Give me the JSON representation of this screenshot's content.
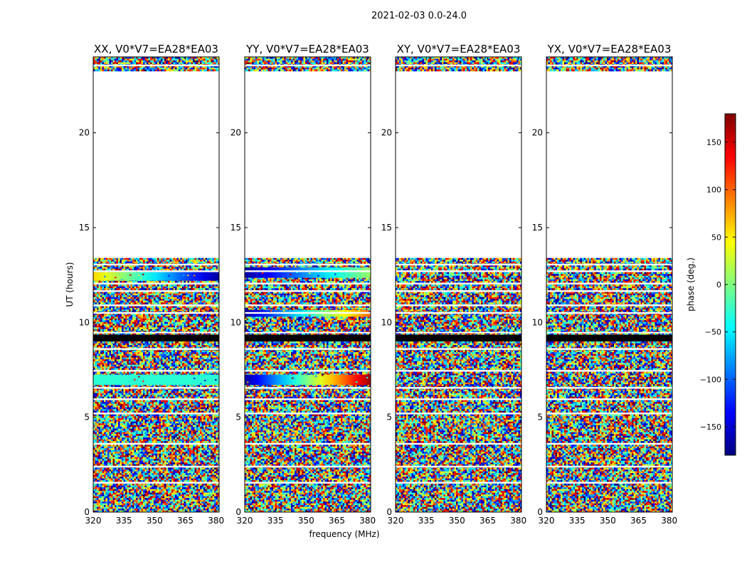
{
  "figure": {
    "suptitle": "2021-02-03 0.0-24.0",
    "xlabel": "frequency (MHz)",
    "ylabel": "UT (hours)"
  },
  "colorbar": {
    "label": "phase (deg.)",
    "range": [
      -180,
      180
    ],
    "ticks": [
      -150,
      -100,
      -50,
      0,
      50,
      100,
      150
    ],
    "tick_labels": [
      "−150",
      "−100",
      "−50",
      "0",
      "50",
      "100",
      "150"
    ],
    "colormap": "jet",
    "colors": [
      "#00007f",
      "#0000ff",
      "#007fff",
      "#00ffff",
      "#7fff7f",
      "#ffff00",
      "#ff7f00",
      "#ff0000",
      "#7f0000"
    ]
  },
  "chart_data": [
    {
      "type": "heatmap",
      "title": "XX, V0*V7=EA28*EA03",
      "x_range": [
        320,
        381.5
      ],
      "y_range": [
        0,
        24
      ],
      "x_ticks": [
        320,
        335,
        350,
        365,
        380
      ],
      "y_ticks": [
        0,
        5,
        10,
        15,
        20
      ],
      "data_coverage_hours": [
        [
          0,
          13.4
        ],
        [
          23.3,
          24
        ]
      ],
      "coherent_bands": [
        {
          "y": [
            12.2,
            12.65
          ],
          "phase_start": 60,
          "phase_end": -170
        },
        {
          "y": [
            6.7,
            7.25
          ],
          "phase_start": -30,
          "phase_end": -30
        }
      ]
    },
    {
      "type": "heatmap",
      "title": "YY, V0*V7=EA28*EA03",
      "x_range": [
        320,
        381.5
      ],
      "y_range": [
        0,
        24
      ],
      "x_ticks": [
        320,
        335,
        350,
        365,
        380
      ],
      "y_ticks": [
        0,
        5,
        10,
        15,
        20
      ],
      "data_coverage_hours": [
        [
          0,
          13.4
        ],
        [
          23.3,
          24
        ]
      ],
      "coherent_bands": [
        {
          "y": [
            12.35,
            12.9
          ],
          "phase_start": -170,
          "phase_end": 10
        },
        {
          "y": [
            10.3,
            10.65
          ],
          "phase_start": -170,
          "phase_end": 100
        },
        {
          "y": [
            6.7,
            7.25
          ],
          "phase_start": -170,
          "phase_end": 170
        }
      ]
    },
    {
      "type": "heatmap",
      "title": "XY, V0*V7=EA28*EA03",
      "x_range": [
        320,
        381.5
      ],
      "y_range": [
        0,
        24
      ],
      "x_ticks": [
        320,
        335,
        350,
        365,
        380
      ],
      "y_ticks": [
        0,
        5,
        10,
        15,
        20
      ],
      "data_coverage_hours": [
        [
          0,
          13.4
        ],
        [
          23.3,
          24
        ]
      ],
      "coherent_bands": []
    },
    {
      "type": "heatmap",
      "title": "YX, V0*V7=EA28*EA03",
      "x_range": [
        320,
        381.5
      ],
      "y_range": [
        0,
        24
      ],
      "x_ticks": [
        320,
        335,
        350,
        365,
        380
      ],
      "y_ticks": [
        0,
        5,
        10,
        15,
        20
      ],
      "data_coverage_hours": [
        [
          0,
          13.4
        ],
        [
          23.3,
          24
        ]
      ],
      "coherent_bands": []
    }
  ],
  "shared_flags": {
    "white_gaps_hours": [
      2.4,
      1.55,
      3.6,
      5.2,
      5.95,
      6.55,
      7.45,
      8.6,
      10.5,
      10.9,
      11.65,
      12.05,
      12.7,
      13.05,
      23.55
    ],
    "black_bands_hours": [
      [
        9.0,
        9.35
      ]
    ]
  }
}
